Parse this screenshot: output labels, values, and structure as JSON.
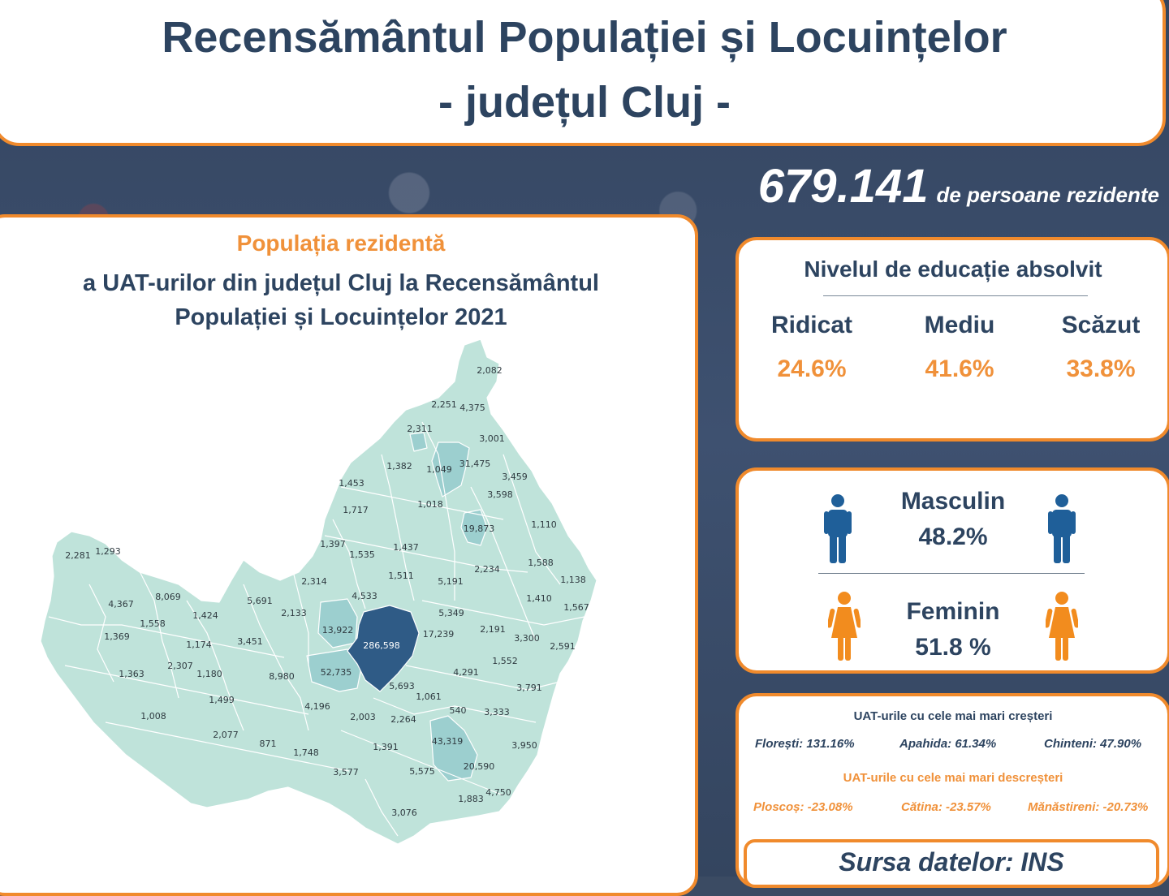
{
  "header": {
    "title_line1": "Recensământul Populației și Locuințelor",
    "title_line2": "- județul Cluj -"
  },
  "total": {
    "value": "679.141",
    "label": "de persoane rezidente"
  },
  "map": {
    "title": "Populația rezidentă",
    "subtitle_line1": "a UAT-urilor din județul Cluj la Recensământul",
    "subtitle_line2": "Populației și Locuințelor 2021",
    "fill_colors": {
      "low": "#bfe3da",
      "mid": "#9ccfcf",
      "high": "#2f5b86"
    }
  },
  "chart_data": {
    "type": "map",
    "labels": [
      "2,082",
      "2,251",
      "4,375",
      "2,311",
      "3,001",
      "1,382",
      "1,049",
      "31,475",
      "3,459",
      "1,453",
      "1,018",
      "3,598",
      "1,717",
      "19,873",
      "1,110",
      "2,281",
      "1,293",
      "1,397",
      "1,535",
      "1,437",
      "1,588",
      "2,234",
      "2,314",
      "1,511",
      "5,191",
      "1,138",
      "4,367",
      "8,069",
      "5,691",
      "4,533",
      "1,410",
      "1,567",
      "1,558",
      "1,424",
      "2,133",
      "5,349",
      "13,922",
      "17,239",
      "2,191",
      "1,369",
      "1,174",
      "3,451",
      "286,598",
      "3,300",
      "2,591",
      "2,307",
      "1,552",
      "1,363",
      "1,180",
      "8,980",
      "52,735",
      "4,291",
      "5,693",
      "3,791",
      "1,061",
      "1,499",
      "4,196",
      "540",
      "3,333",
      "1,008",
      "2,003",
      "2,264",
      "2,077",
      "871",
      "43,319",
      "3,950",
      "1,748",
      "1,391",
      "20,590",
      "3,577",
      "5,575",
      "1,883",
      "4,750",
      "3,076"
    ]
  },
  "education": {
    "title": "Nivelul de educație absolvit",
    "levels": [
      {
        "label": "Ridicat",
        "value": "24.6%"
      },
      {
        "label": "Mediu",
        "value": "41.6%"
      },
      {
        "label": "Scăzut",
        "value": "33.8%"
      }
    ]
  },
  "gender": {
    "male_label": "Masculin",
    "male_value": "48.2%",
    "female_label": "Feminin",
    "female_value": "51.8 %",
    "male_color": "#1f5f99",
    "female_color": "#f28c1e"
  },
  "uat": {
    "growth_title": "UAT-urile cu cele mai mari creșteri",
    "growth": [
      "Florești: 131.16%",
      "Apahida: 61.34%",
      "Chinteni: 47.90%"
    ],
    "decline_title": "UAT-urile cu cele mai mari descreșteri",
    "decline": [
      "Ploscoș: -23.08%",
      "Cătina: -23.57%",
      "Mănăstireni: -20.73%"
    ]
  },
  "source": "Sursa datelor: INS"
}
